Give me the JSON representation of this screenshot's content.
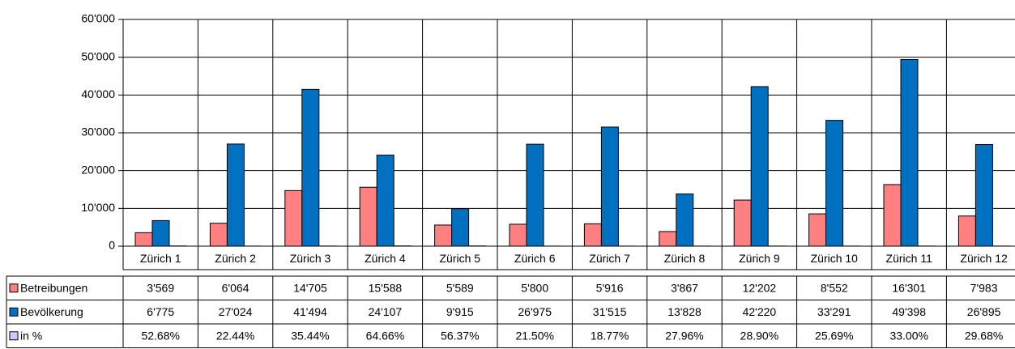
{
  "chart_data": {
    "type": "bar",
    "categories": [
      "Zürich 1",
      "Zürich 2",
      "Zürich 3",
      "Zürich 4",
      "Zürich 5",
      "Zürich 6",
      "Zürich 7",
      "Zürich 8",
      "Zürich 9",
      "Zürich 10",
      "Zürich 11",
      "Zürich 12"
    ],
    "series": [
      {
        "name": "Betreibungen",
        "color": "#ff8080",
        "values": [
          3569,
          6064,
          14705,
          15588,
          5589,
          5800,
          5916,
          3867,
          12202,
          8552,
          16301,
          7983
        ],
        "value_labels": [
          "3'569",
          "6'064",
          "14'705",
          "15'588",
          "5'589",
          "5'800",
          "5'916",
          "3'867",
          "12'202",
          "8'552",
          "16'301",
          "7'983"
        ]
      },
      {
        "name": "Bevölkerung",
        "color": "#0070c0",
        "values": [
          6775,
          27024,
          41494,
          24107,
          9915,
          26975,
          31515,
          13828,
          42220,
          33291,
          49398,
          26895
        ],
        "value_labels": [
          "6'775",
          "27'024",
          "41'494",
          "24'107",
          "9'915",
          "26'975",
          "31'515",
          "13'828",
          "42'220",
          "33'291",
          "49'398",
          "26'895"
        ]
      },
      {
        "name": "in %",
        "color": "#ccccff",
        "values": [
          52.68,
          22.44,
          35.44,
          64.66,
          56.37,
          21.5,
          18.77,
          27.96,
          28.9,
          25.69,
          33.0,
          29.68
        ],
        "value_labels": [
          "52.68%",
          "22.44%",
          "35.44%",
          "64.66%",
          "56.37%",
          "21.50%",
          "18.77%",
          "27.96%",
          "28.90%",
          "25.69%",
          "33.00%",
          "29.68%"
        ]
      }
    ],
    "ylim": [
      0,
      60000
    ],
    "yticks": [
      0,
      {
        "value": 10000,
        "label": "10'000"
      },
      {
        "value": 20000,
        "label": "20'000"
      },
      {
        "value": 30000,
        "label": "30'000"
      },
      {
        "value": 40000,
        "label": "40'000"
      },
      {
        "value": 50000,
        "label": "50'000"
      },
      {
        "value": 60000,
        "label": "60'000"
      }
    ],
    "grid": true
  }
}
